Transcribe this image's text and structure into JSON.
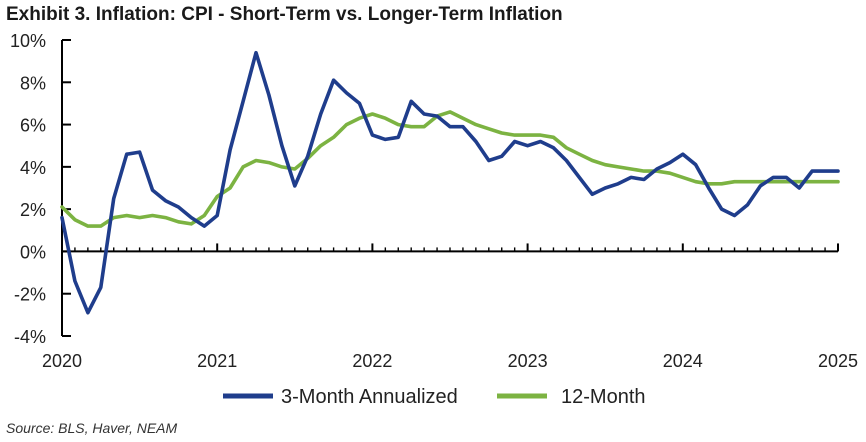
{
  "title": "Exhibit 3. Inflation: CPI - Short-Term vs. Longer-Term Inflation",
  "source": "Source: BLS, Haver, NEAM",
  "chart_data": {
    "type": "line",
    "title": "Exhibit 3. Inflation: CPI - Short-Term vs. Longer-Term Inflation",
    "xlabel": "",
    "ylabel": "",
    "xlim": [
      2020.0,
      2025.0
    ],
    "ylim": [
      -4,
      10
    ],
    "y_ticks": [
      10,
      8,
      6,
      4,
      2,
      0,
      -2,
      -4
    ],
    "y_tick_labels": [
      "10%",
      "8%",
      "6%",
      "4%",
      "2%",
      "0%",
      "-2%",
      "-4%"
    ],
    "x_ticks": [
      2020,
      2021,
      2022,
      2023,
      2024,
      2025
    ],
    "x_tick_labels": [
      "2020",
      "2021",
      "2022",
      "2023",
      "2024",
      "2025"
    ],
    "grid": false,
    "legend_position": "bottom",
    "series": [
      {
        "name": "3-Month Annualized",
        "color": "#1f3d8c",
        "x": [
          2020.0,
          2020.083,
          2020.167,
          2020.25,
          2020.333,
          2020.417,
          2020.5,
          2020.583,
          2020.667,
          2020.75,
          2020.833,
          2020.917,
          2021.0,
          2021.083,
          2021.167,
          2021.25,
          2021.333,
          2021.417,
          2021.5,
          2021.583,
          2021.667,
          2021.75,
          2021.833,
          2021.917,
          2022.0,
          2022.083,
          2022.167,
          2022.25,
          2022.333,
          2022.417,
          2022.5,
          2022.583,
          2022.667,
          2022.75,
          2022.833,
          2022.917,
          2023.0,
          2023.083,
          2023.167,
          2023.25,
          2023.333,
          2023.417,
          2023.5,
          2023.583,
          2023.667,
          2023.75,
          2023.833,
          2023.917,
          2024.0,
          2024.083,
          2024.167,
          2024.25,
          2024.333,
          2024.417,
          2024.5,
          2024.583,
          2024.667,
          2024.75,
          2024.833,
          2024.917,
          2025.0
        ],
        "values": [
          1.6,
          -1.4,
          -2.9,
          -1.7,
          2.5,
          4.6,
          4.7,
          2.9,
          2.4,
          2.1,
          1.6,
          1.2,
          1.7,
          4.8,
          7.1,
          9.4,
          7.4,
          5.0,
          3.1,
          4.5,
          6.5,
          8.1,
          7.5,
          7.0,
          5.5,
          5.3,
          5.4,
          7.1,
          6.5,
          6.4,
          5.9,
          5.9,
          5.2,
          4.3,
          4.5,
          5.2,
          5.0,
          5.2,
          4.9,
          4.3,
          3.5,
          2.7,
          3.0,
          3.2,
          3.5,
          3.4,
          3.9,
          4.2,
          4.6,
          4.1,
          3.0,
          2.0,
          1.7,
          2.2,
          3.1,
          3.5,
          3.5,
          3.0,
          3.8,
          3.8,
          3.8
        ]
      },
      {
        "name": "12-Month",
        "color": "#7cb342",
        "x": [
          2020.0,
          2020.083,
          2020.167,
          2020.25,
          2020.333,
          2020.417,
          2020.5,
          2020.583,
          2020.667,
          2020.75,
          2020.833,
          2020.917,
          2021.0,
          2021.083,
          2021.167,
          2021.25,
          2021.333,
          2021.417,
          2021.5,
          2021.583,
          2021.667,
          2021.75,
          2021.833,
          2021.917,
          2022.0,
          2022.083,
          2022.167,
          2022.25,
          2022.333,
          2022.417,
          2022.5,
          2022.583,
          2022.667,
          2022.75,
          2022.833,
          2022.917,
          2023.0,
          2023.083,
          2023.167,
          2023.25,
          2023.333,
          2023.417,
          2023.5,
          2023.583,
          2023.667,
          2023.75,
          2023.833,
          2023.917,
          2024.0,
          2024.083,
          2024.167,
          2024.25,
          2024.333,
          2024.417,
          2024.5,
          2024.583,
          2024.667,
          2024.75,
          2024.833,
          2024.917,
          2025.0
        ],
        "values": [
          2.1,
          1.5,
          1.2,
          1.2,
          1.6,
          1.7,
          1.6,
          1.7,
          1.6,
          1.4,
          1.3,
          1.7,
          2.6,
          3.0,
          4.0,
          4.3,
          4.2,
          4.0,
          3.9,
          4.4,
          5.0,
          5.4,
          6.0,
          6.3,
          6.5,
          6.3,
          6.0,
          5.9,
          5.9,
          6.4,
          6.6,
          6.3,
          6.0,
          5.8,
          5.6,
          5.5,
          5.5,
          5.5,
          5.4,
          4.9,
          4.6,
          4.3,
          4.1,
          4.0,
          3.9,
          3.8,
          3.8,
          3.7,
          3.5,
          3.3,
          3.2,
          3.2,
          3.3,
          3.3,
          3.3,
          3.3,
          3.3,
          3.3,
          3.3,
          3.3,
          3.3
        ]
      }
    ]
  }
}
